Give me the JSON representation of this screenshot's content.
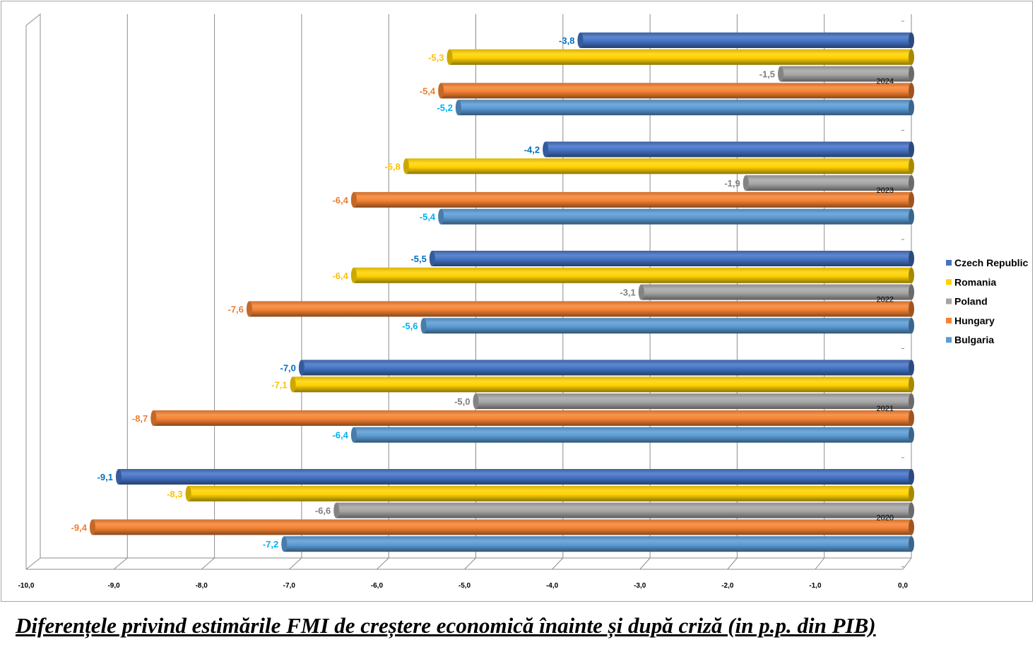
{
  "chart_data": {
    "type": "bar",
    "orientation": "horizontal",
    "style": "3d-cylinder",
    "title": "Diferențele privind estimările FMI de creștere economică înainte și după criză (in p.p. din PIB)",
    "categories": [
      "2024",
      "2023",
      "2022",
      "2021",
      "2020"
    ],
    "series": [
      {
        "name": "Czech Republic",
        "color": "#4472C4",
        "label_color": "#0070C0",
        "values": [
          -3.8,
          -4.2,
          -5.5,
          -7.0,
          -9.1
        ]
      },
      {
        "name": "Romania",
        "color": "#FFD200",
        "label_color": "#FFC000",
        "values": [
          -5.3,
          -5.8,
          -6.4,
          -7.1,
          -8.3
        ]
      },
      {
        "name": "Poland",
        "color": "#A5A5A5",
        "label_color": "#7F7F7F",
        "values": [
          -1.5,
          -1.9,
          -3.1,
          -5.0,
          -6.6
        ]
      },
      {
        "name": "Hungary",
        "color": "#F58232",
        "label_color": "#ED7D31",
        "values": [
          -5.4,
          -6.4,
          -7.6,
          -8.7,
          -9.4
        ]
      },
      {
        "name": "Bulgaria",
        "color": "#5B9BD5",
        "label_color": "#00B0F0",
        "values": [
          -5.2,
          -5.4,
          -5.6,
          -6.4,
          -7.2
        ]
      }
    ],
    "xlim": [
      -10,
      0
    ],
    "x_ticks": [
      "-10,0",
      "-9,0",
      "-8,0",
      "-7,0",
      "-6,0",
      "-5,0",
      "-4,0",
      "-3,0",
      "-2,0",
      "-1,0",
      "0,0"
    ],
    "grid": true,
    "legend_position": "right",
    "decimal_separator": ","
  }
}
